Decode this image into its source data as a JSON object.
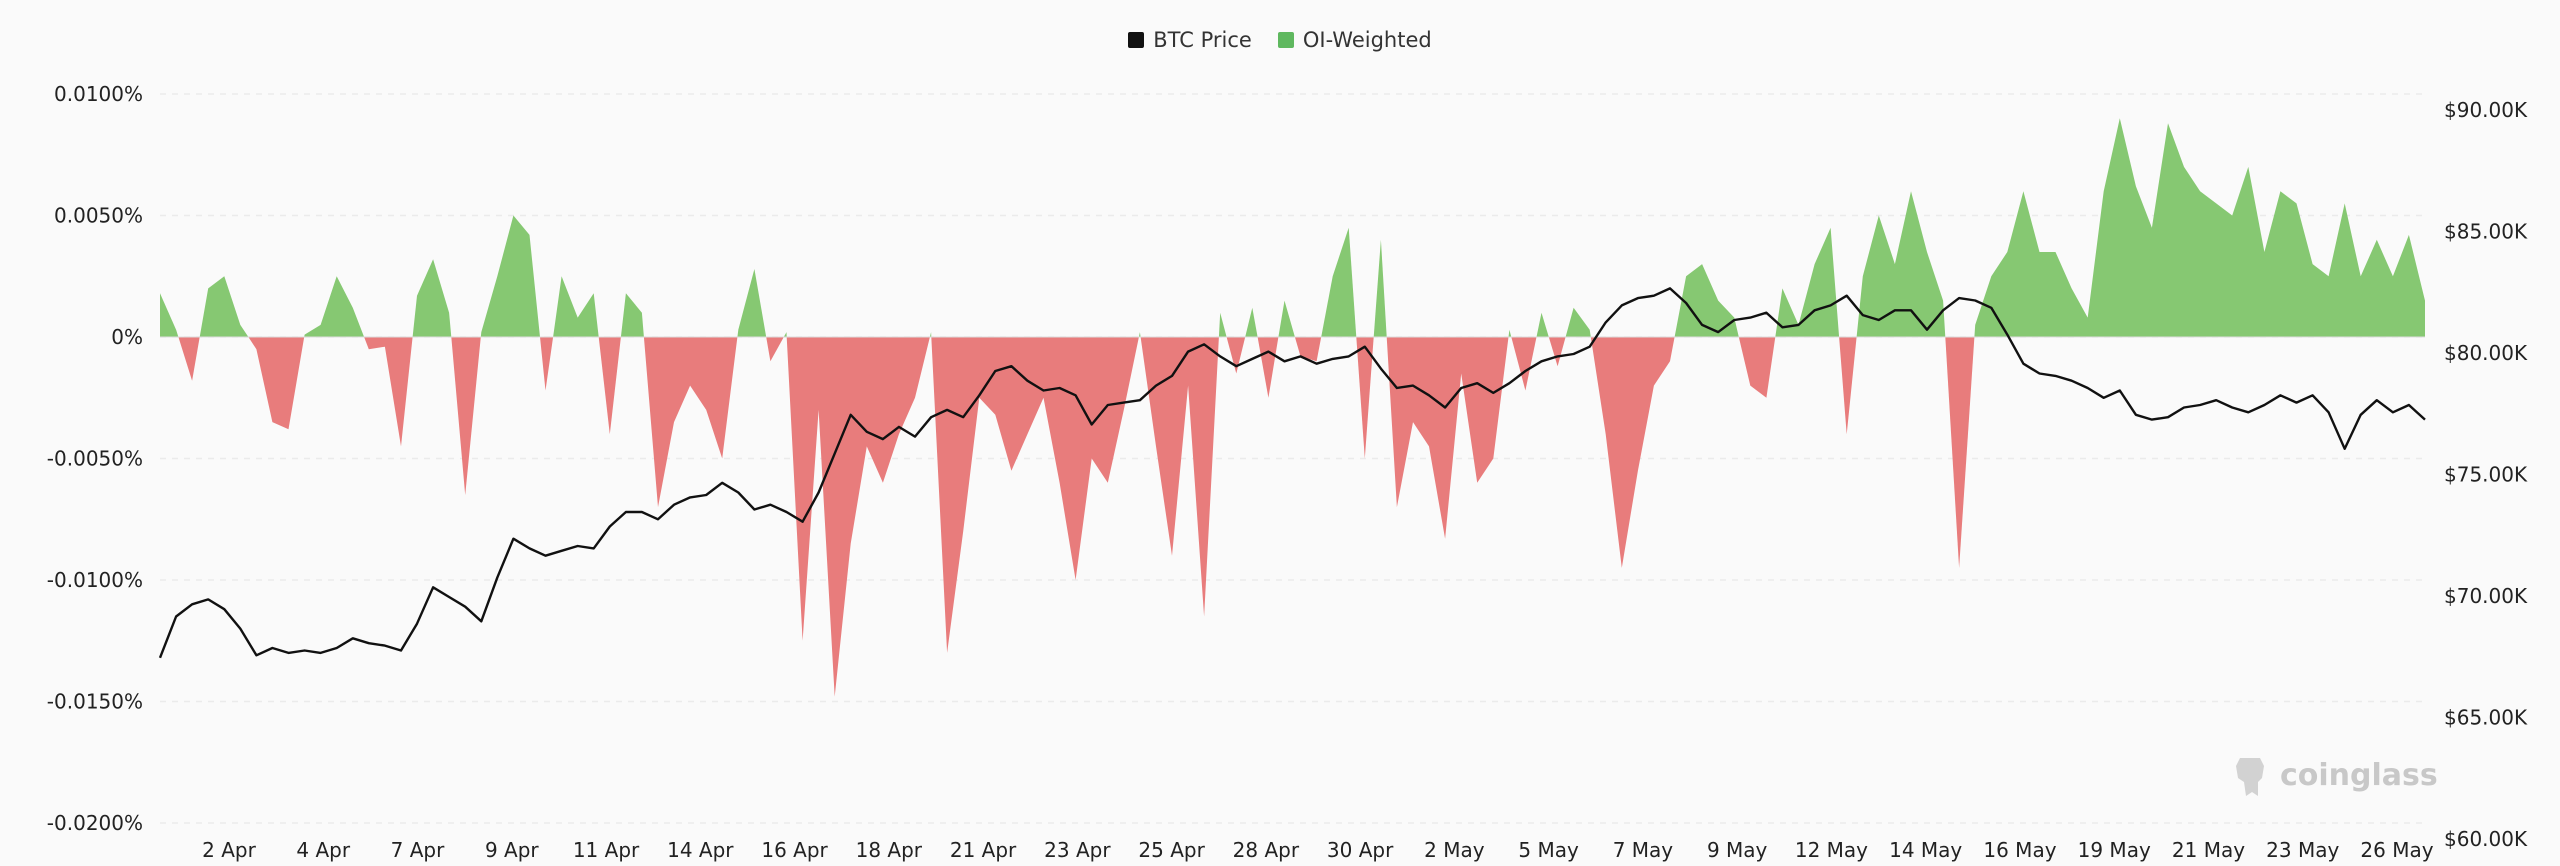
{
  "legend": {
    "price_label": "BTC Price",
    "oi_label": "OI-Weighted"
  },
  "watermark": {
    "text": "coinglass"
  },
  "colors": {
    "price": "#111111",
    "positive": "#86c872",
    "negative": "#e87c7c",
    "legend_oi": "#5fb85f",
    "grid": "#ebebeb",
    "zero": "#dddddd"
  },
  "chart_data": {
    "type": "area",
    "x_labels": [
      "2 Apr",
      "4 Apr",
      "7 Apr",
      "9 Apr",
      "11 Apr",
      "14 Apr",
      "16 Apr",
      "18 Apr",
      "21 Apr",
      "23 Apr",
      "25 Apr",
      "28 Apr",
      "30 Apr",
      "2 May",
      "5 May",
      "7 May",
      "9 May",
      "12 May",
      "14 May",
      "16 May",
      "19 May",
      "21 May",
      "23 May",
      "26 May"
    ],
    "y_left": {
      "label": "",
      "ticks": [
        "0.0100%",
        "0.0050%",
        "0%",
        "-0.0050%",
        "-0.0100%",
        "-0.0150%",
        "-0.0200%"
      ],
      "range": [
        -0.02,
        0.01
      ],
      "unit": "%"
    },
    "y_right": {
      "label": "",
      "ticks": [
        "$90.00K",
        "$85.00K",
        "$80.00K",
        "$75.00K",
        "$70.00K",
        "$65.00K",
        "$60.00K"
      ],
      "range": [
        60000,
        90000
      ]
    },
    "grid": true,
    "legend_position": "top-center",
    "series": [
      {
        "name": "OI-Weighted",
        "axis": "left",
        "type": "area",
        "values": [
          0.0018,
          0.0003,
          -0.0018,
          0.002,
          0.0025,
          0.0005,
          -0.0005,
          -0.0035,
          -0.0038,
          0.0001,
          0.0005,
          0.0025,
          0.0012,
          -0.0005,
          -0.0004,
          -0.0045,
          0.0017,
          0.0032,
          0.001,
          -0.0065,
          0.0002,
          0.0025,
          0.005,
          0.0042,
          -0.0022,
          0.0025,
          0.0008,
          0.0018,
          -0.004,
          0.0018,
          0.001,
          -0.007,
          -0.0035,
          -0.002,
          -0.003,
          -0.005,
          0.0003,
          0.0028,
          -0.001,
          0.0002,
          -0.0125,
          -0.003,
          -0.0148,
          -0.0085,
          -0.0045,
          -0.006,
          -0.004,
          -0.0025,
          0.0002,
          -0.013,
          -0.008,
          -0.0025,
          -0.0032,
          -0.0055,
          -0.004,
          -0.0025,
          -0.006,
          -0.01,
          -0.005,
          -0.006,
          -0.003,
          0.0002,
          -0.0045,
          -0.009,
          -0.002,
          -0.0115,
          0.001,
          -0.0015,
          0.0012,
          -0.0025,
          0.0015,
          -0.0008,
          -0.001,
          0.0025,
          0.0045,
          -0.005,
          0.004,
          -0.007,
          -0.0035,
          -0.0045,
          -0.0083,
          -0.0015,
          -0.006,
          -0.005,
          0.0003,
          -0.0022,
          0.001,
          -0.0012,
          0.0012,
          0.0003,
          -0.004,
          -0.0095,
          -0.0055,
          -0.002,
          -0.001,
          0.0025,
          0.003,
          0.0015,
          0.0008,
          -0.002,
          -0.0025,
          0.002,
          0.0005,
          0.003,
          0.0045,
          -0.004,
          0.0025,
          0.005,
          0.003,
          0.006,
          0.0035,
          0.0015,
          -0.0095,
          0.0005,
          0.0025,
          0.0035,
          0.006,
          0.0035,
          0.0035,
          0.002,
          0.0008,
          0.006,
          0.009,
          0.0062,
          0.0045,
          0.0088,
          0.007,
          0.006,
          0.0055,
          0.005,
          0.007,
          0.0035,
          0.006,
          0.0055,
          0.003,
          0.0025,
          0.0055,
          0.0025,
          0.004,
          0.0025,
          0.0042,
          0.0015
        ]
      },
      {
        "name": "BTC Price",
        "axis": "right",
        "type": "line",
        "values": [
          66800,
          68500,
          69000,
          69200,
          68800,
          68000,
          66900,
          67200,
          67000,
          67100,
          67000,
          67200,
          67600,
          67400,
          67300,
          67100,
          68200,
          69700,
          69300,
          68900,
          68300,
          70100,
          71700,
          71300,
          71000,
          71200,
          71400,
          71300,
          72200,
          72800,
          72800,
          72500,
          73100,
          73400,
          73500,
          74000,
          73600,
          72900,
          73100,
          72800,
          72400,
          73600,
          75200,
          76800,
          76100,
          75800,
          76300,
          75900,
          76700,
          77000,
          76700,
          77600,
          78600,
          78800,
          78200,
          77800,
          77900,
          77600,
          76400,
          77200,
          77300,
          77400,
          78000,
          78400,
          79400,
          79700,
          79200,
          78800,
          79100,
          79400,
          79000,
          79200,
          78900,
          79100,
          79200,
          79600,
          78700,
          77900,
          78000,
          77600,
          77100,
          77900,
          78100,
          77700,
          78100,
          78600,
          79000,
          79200,
          79300,
          79600,
          80600,
          81300,
          81600,
          81700,
          82000,
          81400,
          80500,
          80200,
          80700,
          80800,
          81000,
          80400,
          80500,
          81100,
          81300,
          81700,
          80900,
          80700,
          81100,
          81100,
          80300,
          81100,
          81600,
          81500,
          81200,
          80100,
          78900,
          78500,
          78400,
          78200,
          77900,
          77500,
          77800,
          76800,
          76600,
          76700,
          77100,
          77200,
          77400,
          77100,
          76900,
          77200,
          77600,
          77300,
          77600,
          76900,
          75400,
          76800,
          77400,
          76900,
          77200,
          76600
        ]
      }
    ]
  }
}
